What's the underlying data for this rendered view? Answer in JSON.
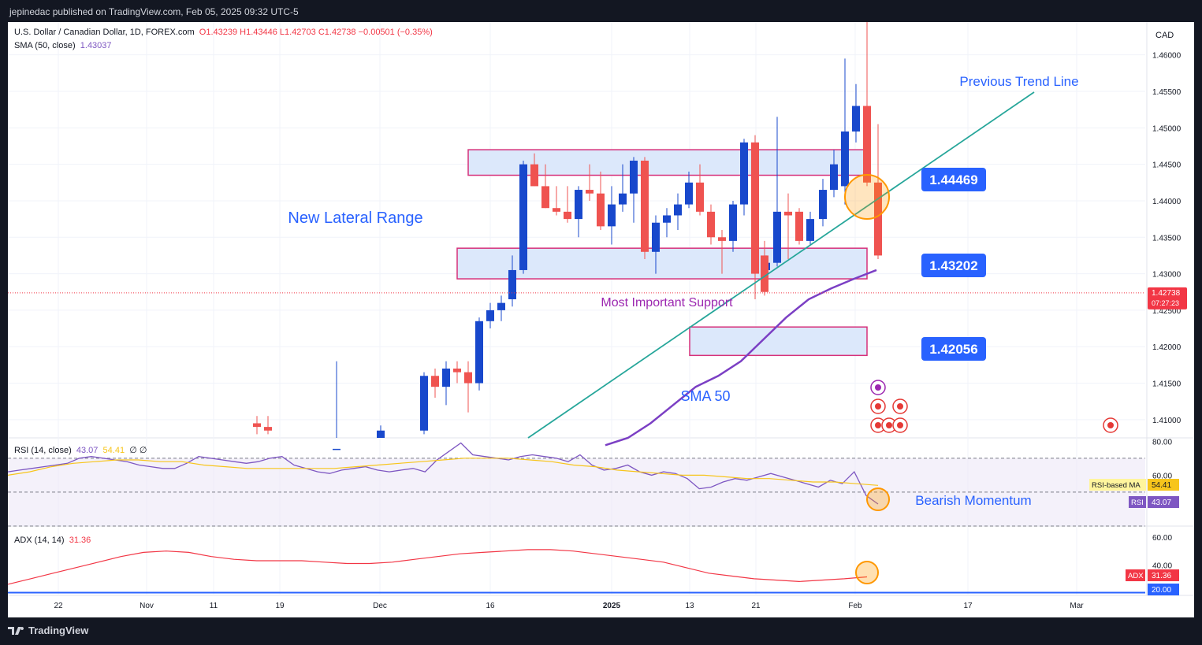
{
  "header": {
    "published": "jepinedac published on TradingView.com, Feb 05, 2025 09:32 UTC-5"
  },
  "legend": {
    "symbol": "U.S. Dollar / Canadian Dollar, 1D, FOREX.com",
    "ohlc": "O1.43239  H1.43446  L1.42703  C1.42738  −0.00501 (−0.35%)",
    "sma_label": "SMA (50, close)",
    "sma_value": "1.43037",
    "rsi_label": "RSI (14, close)",
    "rsi_value": "43.07",
    "rsi_ma_value": "54.41",
    "rsi_extra": "∅ ∅",
    "adx_label": "ADX (14, 14)",
    "adx_value": "31.36"
  },
  "currency": "CAD",
  "footer": {
    "brand": "TradingView"
  },
  "colors": {
    "up": "#1848cc",
    "down": "#ef5350",
    "sma": "#7b3fc4",
    "trend": "#26a69a",
    "zone_border": "#d6307a",
    "zone_fill": "#dce8fb",
    "label_bg": "#2962ff",
    "rsi": "#7e57c2",
    "rsi_ma": "#f7c51b",
    "adx": "#f23645"
  },
  "chart_data": [
    {
      "type": "candlestick",
      "title": "U.S. Dollar / Canadian Dollar, 1D, FOREX.com",
      "ylim": [
        1.4075,
        1.4645
      ],
      "y_ticks": [
        "1.46000",
        "1.45500",
        "1.45000",
        "1.44500",
        "1.44000",
        "1.43500",
        "1.43000",
        "1.42500",
        "1.42000",
        "1.41500",
        "1.41000"
      ],
      "x_ticks": [
        "22",
        "Nov",
        "11",
        "19",
        "Dec",
        "16",
        "2025",
        "13",
        "21",
        "Feb",
        "17",
        "Mar"
      ],
      "candles": [
        [
          "Nov 14",
          1.4095,
          1.4105,
          1.408,
          1.409
        ],
        [
          "Nov 15",
          1.409,
          1.4105,
          1.408,
          1.4085
        ],
        [
          "Nov 26",
          1.405,
          1.418,
          1.404,
          1.406
        ],
        [
          "Dec 04",
          1.406,
          1.4092,
          1.4055,
          1.4085
        ],
        [
          "Dec 10",
          1.4085,
          1.4165,
          1.408,
          1.416
        ],
        [
          "Dec 11",
          1.416,
          1.417,
          1.413,
          1.4145
        ],
        [
          "Dec 12",
          1.4145,
          1.418,
          1.412,
          1.417
        ],
        [
          "Dec 13",
          1.417,
          1.418,
          1.415,
          1.4165
        ],
        [
          "Dec 16",
          1.4165,
          1.418,
          1.411,
          1.415
        ],
        [
          "Dec 17",
          1.415,
          1.424,
          1.414,
          1.4235
        ],
        [
          "Dec 18",
          1.4235,
          1.426,
          1.4225,
          1.425
        ],
        [
          "Dec 19",
          1.425,
          1.427,
          1.4235,
          1.426
        ],
        [
          "Dec 20",
          1.4265,
          1.4325,
          1.4255,
          1.4305
        ],
        [
          "Dec 23",
          1.4305,
          1.4455,
          1.43,
          1.445
        ],
        [
          "Dec 24",
          1.445,
          1.4465,
          1.442,
          1.442
        ],
        [
          "Dec 26",
          1.442,
          1.445,
          1.439,
          1.439
        ],
        [
          "Dec 27",
          1.439,
          1.442,
          1.438,
          1.4385
        ],
        [
          "Dec 30",
          1.4385,
          1.442,
          1.437,
          1.4375
        ],
        [
          "Dec 31",
          1.4375,
          1.442,
          1.435,
          1.4415
        ],
        [
          "Jan 02",
          1.4415,
          1.445,
          1.44,
          1.441
        ],
        [
          "Jan 03",
          1.441,
          1.444,
          1.436,
          1.4365
        ],
        [
          "Jan 06",
          1.4365,
          1.442,
          1.434,
          1.4395
        ],
        [
          "Jan 07",
          1.4395,
          1.445,
          1.4385,
          1.441
        ],
        [
          "Jan 08",
          1.441,
          1.446,
          1.437,
          1.4455
        ],
        [
          "Jan 09",
          1.4455,
          1.446,
          1.432,
          1.433
        ],
        [
          "Jan 10",
          1.433,
          1.438,
          1.43,
          1.437
        ],
        [
          "Jan 13",
          1.437,
          1.439,
          1.435,
          1.438
        ],
        [
          "Jan 14",
          1.438,
          1.441,
          1.436,
          1.4395
        ],
        [
          "Jan 15",
          1.4395,
          1.444,
          1.439,
          1.4425
        ],
        [
          "Jan 16",
          1.4425,
          1.445,
          1.438,
          1.4385
        ],
        [
          "Jan 17",
          1.4385,
          1.4395,
          1.434,
          1.435
        ],
        [
          "Jan 20",
          1.435,
          1.436,
          1.43,
          1.4345
        ],
        [
          "Jan 21",
          1.4345,
          1.44,
          1.433,
          1.4395
        ],
        [
          "Jan 22",
          1.4395,
          1.4485,
          1.438,
          1.448
        ],
        [
          "Jan 23",
          1.448,
          1.449,
          1.4265,
          1.43
        ],
        [
          "Jan 24",
          1.4305,
          1.4325,
          1.429,
          1.4315
        ],
        [
          "Jan 27",
          1.4315,
          1.4515,
          1.431,
          1.4385
        ],
        [
          "Jan 28",
          1.4385,
          1.441,
          1.432,
          1.438
        ],
        [
          "Jan 29",
          1.4385,
          1.439,
          1.434,
          1.4345
        ],
        [
          "Jan 30",
          1.4345,
          1.4385,
          1.434,
          1.4375
        ],
        [
          "Jan 31",
          1.4375,
          1.443,
          1.4365,
          1.4415
        ],
        [
          "Feb 03",
          1.4415,
          1.447,
          1.4405,
          1.445
        ],
        [
          "Feb 04",
          1.442,
          1.4595,
          1.4395,
          1.4495
        ],
        [
          "Feb 05a",
          1.4495,
          1.456,
          1.448,
          1.453
        ],
        [
          "Feb 05b",
          1.453,
          1.489,
          1.442,
          1.4425
        ],
        [
          "Feb 06",
          1.4425,
          1.4505,
          1.432,
          1.4325
        ],
        [
          "Feb 07",
          1.4325,
          1.4345,
          1.427,
          1.4275
        ]
      ],
      "sma50": [
        [
          1.4065,
          1.4075,
          1.4095,
          1.412,
          1.4145,
          1.416,
          1.418,
          1.421,
          1.424,
          1.4265,
          1.428,
          1.4293,
          1.4305
        ]
      ],
      "zones": [
        {
          "top": 1.447,
          "bottom": 1.4435
        },
        {
          "top": 1.4335,
          "bottom": 1.4293
        },
        {
          "top": 1.4227,
          "bottom": 1.4188
        }
      ],
      "level_labels": [
        "1.44469",
        "1.43202",
        "1.42056"
      ],
      "last_price": "1.42738",
      "countdown": "07:27:23",
      "annotations": [
        "Previous Trend Line",
        "New Lateral Range",
        "Most Important Support",
        "SMA 50"
      ]
    },
    {
      "type": "line",
      "title": "RSI (14, close)",
      "ylim": [
        30,
        82
      ],
      "y_ticks": [
        "80.00",
        "60.00"
      ],
      "series": [
        {
          "name": "RSI",
          "values": [
            62,
            63,
            64,
            65,
            66,
            67,
            70,
            71,
            70,
            69,
            68,
            66,
            65,
            64,
            64,
            67,
            71,
            70,
            69,
            68,
            67,
            68,
            70,
            71,
            66,
            64,
            62,
            61,
            63,
            64,
            65,
            63,
            62,
            63,
            64,
            62,
            69,
            74,
            79,
            72,
            71,
            70,
            69,
            71,
            72,
            71,
            70,
            68,
            72,
            66,
            63,
            64,
            66,
            62,
            60,
            62,
            61,
            58,
            52,
            53,
            56,
            58,
            57,
            59,
            61,
            59,
            57,
            55,
            53,
            57,
            55,
            62,
            48,
            43
          ]
        },
        {
          "name": "RSI-based MA",
          "values": [
            60,
            62,
            65,
            67,
            68,
            69,
            69,
            68,
            68,
            66,
            65,
            64,
            64,
            64,
            64,
            64,
            65,
            66,
            67,
            68,
            69,
            70,
            70,
            70,
            69,
            68,
            66,
            65,
            63,
            62,
            61,
            60,
            60,
            59,
            58,
            58,
            57,
            56,
            56,
            55,
            54
          ]
        }
      ],
      "level_labels": [
        "RSI-based MA",
        "54.41",
        "RSI",
        "43.07"
      ],
      "annotations": [
        "Bearish Momentum"
      ]
    },
    {
      "type": "line",
      "title": "ADX (14, 14)",
      "ylim": [
        18,
        68
      ],
      "y_ticks": [
        "60.00",
        "40.00"
      ],
      "series": [
        {
          "name": "ADX",
          "values": [
            26,
            30,
            34,
            38,
            42,
            46,
            49,
            50,
            49,
            46,
            44,
            43,
            43,
            43,
            42,
            41,
            41,
            42,
            44,
            46,
            48,
            49,
            50,
            51,
            51,
            50,
            48,
            46,
            44,
            42,
            38,
            34,
            32,
            30,
            29,
            28,
            29,
            30,
            31.36
          ]
        }
      ],
      "level_labels": [
        "ADX",
        "31.36",
        "20.00"
      ]
    }
  ]
}
